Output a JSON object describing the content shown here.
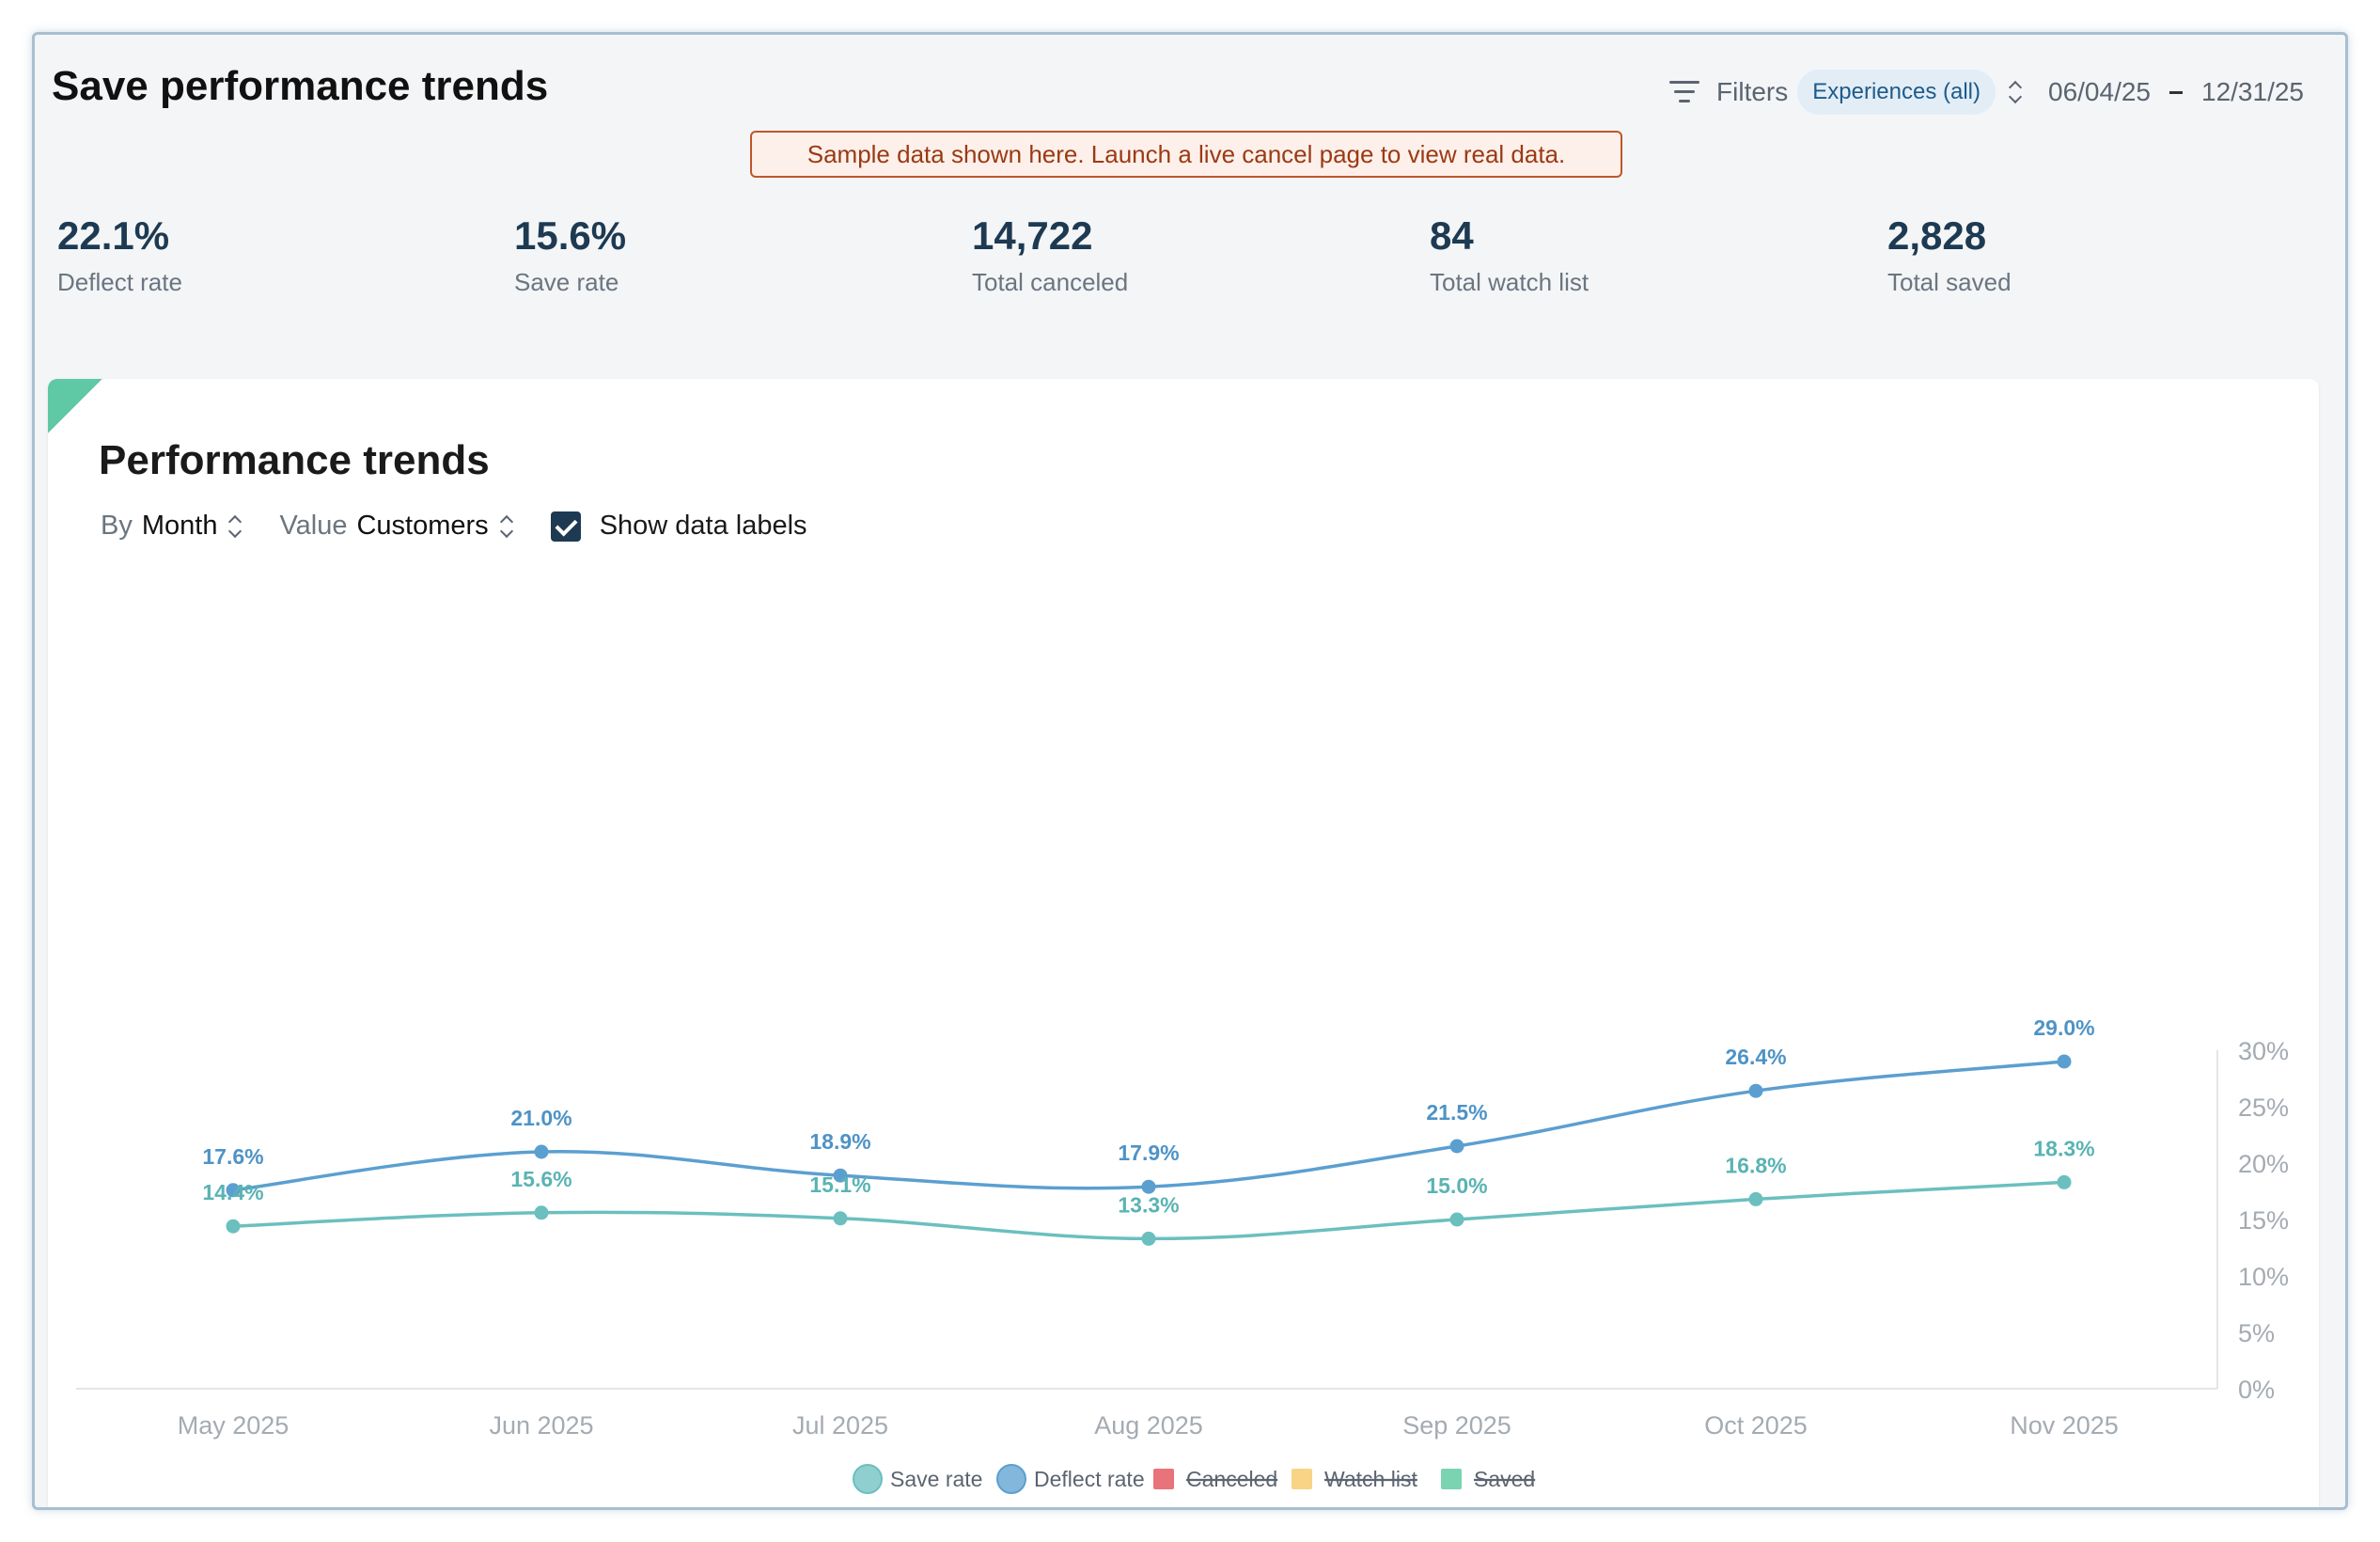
{
  "header": {
    "title": "Save performance trends",
    "filters_label": "Filters",
    "experience_chip": "Experiences (all)",
    "date_start": "06/04/25",
    "date_end": "12/31/25"
  },
  "banner": {
    "text": "Sample data shown here. Launch a live cancel page to view real data."
  },
  "stats": [
    {
      "value": "22.1%",
      "label": "Deflect rate"
    },
    {
      "value": "15.6%",
      "label": "Save rate"
    },
    {
      "value": "14,722",
      "label": "Total canceled"
    },
    {
      "value": "84",
      "label": "Total watch list"
    },
    {
      "value": "2,828",
      "label": "Total saved"
    }
  ],
  "card": {
    "title": "Performance trends",
    "by_label": "By",
    "by_value": "Month",
    "value_label": "Value",
    "value_value": "Customers",
    "show_labels": "Show data labels"
  },
  "colors": {
    "save_rate": "#6bbfbf",
    "deflect_rate": "#5b9fd0",
    "canceled": "#e5646b",
    "watch_list": "#f7cf7a",
    "saved": "#6bcfa8"
  },
  "chart_data": {
    "type": "line",
    "categories": [
      "May 2025",
      "Jun 2025",
      "Jul 2025",
      "Aug 2025",
      "Sep 2025",
      "Oct 2025",
      "Nov 2025"
    ],
    "series": [
      {
        "name": "Deflect rate",
        "values": [
          17.6,
          21.0,
          18.9,
          17.9,
          21.5,
          26.4,
          29.0
        ],
        "labels": [
          "17.6%",
          "21.0%",
          "18.9%",
          "17.9%",
          "21.5%",
          "26.4%",
          "29.0%"
        ]
      },
      {
        "name": "Save rate",
        "values": [
          14.4,
          15.6,
          15.1,
          13.3,
          15.0,
          16.8,
          18.3
        ],
        "labels": [
          "14.4%",
          "15.6%",
          "15.1%",
          "13.3%",
          "15.0%",
          "16.8%",
          "18.3%"
        ]
      }
    ],
    "y_ticks": [
      "0%",
      "5%",
      "10%",
      "15%",
      "20%",
      "25%",
      "30%"
    ],
    "ylim": [
      0,
      30
    ],
    "y_axis_side": "right",
    "legend": [
      {
        "name": "Save rate",
        "shape": "circle",
        "hidden": false
      },
      {
        "name": "Deflect rate",
        "shape": "circle",
        "hidden": false
      },
      {
        "name": "Canceled",
        "shape": "square",
        "hidden": true
      },
      {
        "name": "Watch list",
        "shape": "square",
        "hidden": true
      },
      {
        "name": "Saved",
        "shape": "square",
        "hidden": true
      }
    ],
    "legend_position": "bottom-center"
  }
}
